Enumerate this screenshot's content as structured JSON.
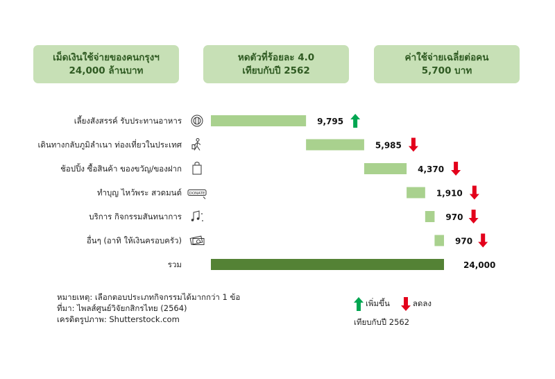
{
  "summary_boxes": [
    {
      "line1": "เม็ดเงินใช้จ่ายของคนกรุงฯ",
      "line2": "24,000 ล้านบาท"
    },
    {
      "line1": "หดตัวที่ร้อยละ 4.0",
      "line2": "เทียบกับปี 2562"
    },
    {
      "line1": "ค่าใช้จ่ายเฉลี่ยต่อคน",
      "line2": "5,700 บาท"
    }
  ],
  "chart_data": {
    "type": "bar",
    "subtype": "waterfall",
    "title": "",
    "xlabel": "",
    "ylabel": "",
    "categories": [
      "เลี้ยงสังสรรค์ รับประทานอาหาร",
      "เดินทางกลับภูมิลำเนา ท่องเที่ยวในประเทศ",
      "ช้อปปิ้ง ซื้อสินค้า ของขวัญ/ของฝาก",
      "ทำบุญ ไหว้พระ สวดมนต์",
      "บริการ กิจกรรมสันทนาการ",
      "อื่นๆ (อาทิ ให้เงินครอบครัว)",
      "รวม"
    ],
    "values": [
      9795,
      5985,
      4370,
      1910,
      970,
      970,
      24000
    ],
    "value_labels": [
      "9,795",
      "5,985",
      "4,370",
      "1,910",
      "970",
      "970",
      "24,000"
    ],
    "trend": [
      "up",
      "down",
      "down",
      "down",
      "down",
      "down",
      "none"
    ],
    "icons": [
      "dining-icon",
      "traveler-icon",
      "shopping-bag-icon",
      "donate-icon",
      "music-notes-icon",
      "money-icon",
      "none"
    ],
    "donate_icon_text": "DONATE",
    "colors": {
      "segment": "#a9d18e",
      "total": "#548235",
      "up": "#00a651",
      "down": "#e3001b"
    }
  },
  "notes": [
    "หมายเหตุ: เลือกตอบประเภทกิจกรรมได้มากกว่า 1 ข้อ",
    "ที่มา: ไพลส์ศูนย์วิจัยกสิกรไทย (2564)",
    "เครดิตรูปภาพ: Shutterstock.com"
  ],
  "legend": {
    "up_label": "เพิ่มขึ้น",
    "down_label": "ลดลง",
    "compare_label": "เทียบกับปี 2562"
  }
}
